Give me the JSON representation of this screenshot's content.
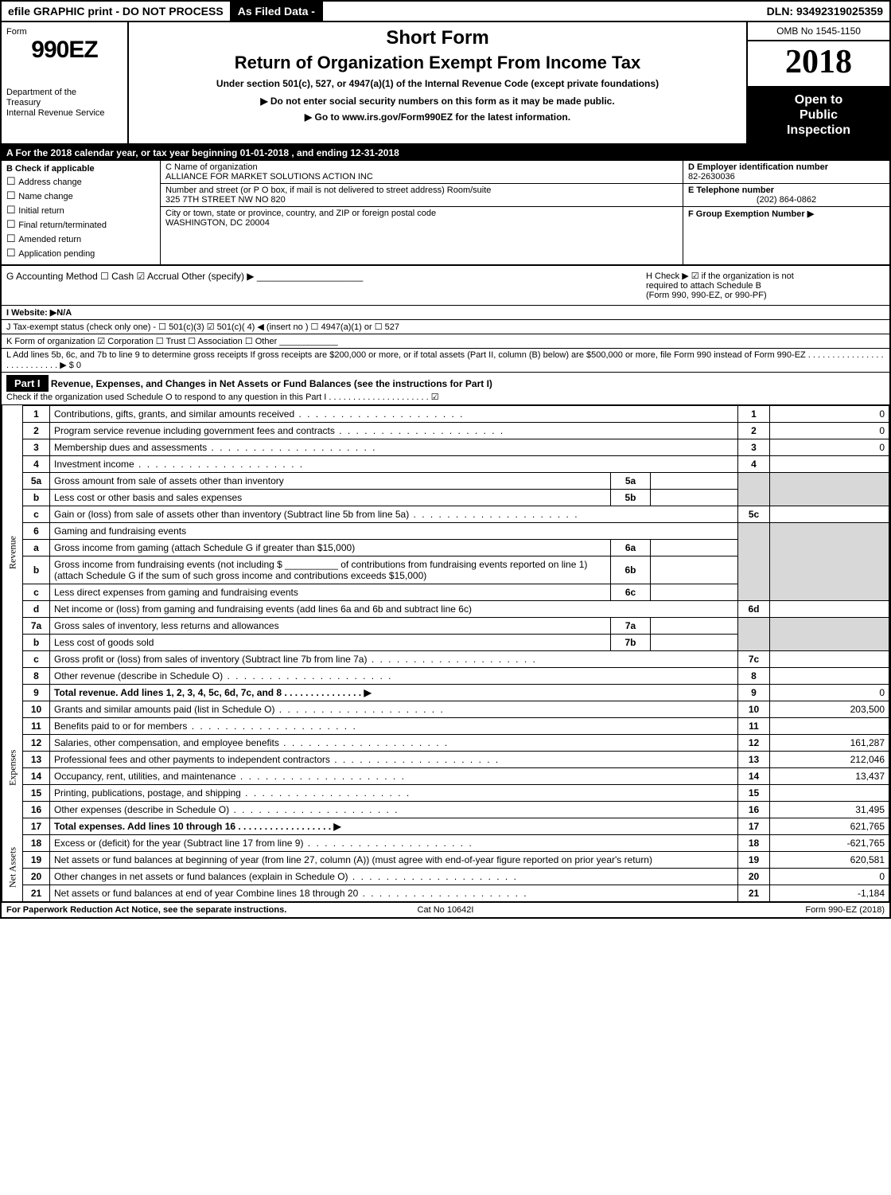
{
  "efile": {
    "left": "efile GRAPHIC print - DO NOT PROCESS",
    "as_filed": "As Filed Data -",
    "dln": "DLN: 93492319025359"
  },
  "header": {
    "form_prefix": "Form",
    "form_number": "990EZ",
    "short_form": "Short Form",
    "title": "Return of Organization Exempt From Income Tax",
    "subtitle": "Under section 501(c), 527, or 4947(a)(1) of the Internal Revenue Code (except private foundations)",
    "no_ssn": "▶ Do not enter social security numbers on this form as it may be made public.",
    "goto": "▶ Go to www.irs.gov/Form990EZ for the latest information.",
    "dept1": "Department of the",
    "dept2": "Treasury",
    "dept3": "Internal Revenue Service",
    "omb": "OMB No 1545-1150",
    "year": "2018",
    "open1": "Open to",
    "open2": "Public",
    "open3": "Inspection"
  },
  "lineA": "A  For the 2018 calendar year, or tax year beginning 01-01-2018           , and ending 12-31-2018",
  "B": {
    "header": "B  Check if applicable",
    "items": [
      "Address change",
      "Name change",
      "Initial return",
      "Final return/terminated",
      "Amended return",
      "Application pending"
    ]
  },
  "C": {
    "name_label": "C Name of organization",
    "name": "ALLIANCE FOR MARKET SOLUTIONS ACTION INC",
    "addr_label": "Number and street (or P O box, if mail is not delivered to street address) Room/suite",
    "addr": "325 7TH STREET NW NO 820",
    "city_label": "City or town, state or province, country, and ZIP or foreign postal code",
    "city": "WASHINGTON, DC 20004"
  },
  "D": {
    "ein_label": "D Employer identification number",
    "ein": "82-2630036",
    "tel_label": "E Telephone number",
    "tel": "(202) 864-0862",
    "grp_label": "F Group Exemption Number  ▶"
  },
  "G": {
    "text": "G Accounting Method    ☐ Cash   ☑ Accrual   Other (specify) ▶ ____________________"
  },
  "H": {
    "line1": "H   Check ▶  ☑ if the organization is not",
    "line2": "required to attach Schedule B",
    "line3": "(Form 990, 990-EZ, or 990-PF)"
  },
  "I": "I Website: ▶N/A",
  "J": "J Tax-exempt status (check only one) - ☐ 501(c)(3)  ☑ 501(c)( 4) ◀ (insert no )  ☐ 4947(a)(1) or  ☐ 527",
  "K": "K Form of organization    ☑ Corporation   ☐ Trust   ☐ Association   ☐ Other ____________",
  "L": "L Add lines 5b, 6c, and 7b to line 9 to determine gross receipts  If gross receipts are $200,000 or more, or if total assets (Part II, column (B) below) are $500,000 or more, file Form 990 instead of Form 990-EZ  . . . . . . . . . . . . . . . . . . . . . . . . . . . ▶ $ 0",
  "partI": {
    "label": "Part I",
    "title": "Revenue, Expenses, and Changes in Net Assets or Fund Balances (see the instructions for Part I)",
    "sub": "Check if the organization used Schedule O to respond to any question in this Part I . . . . . . . . . . . . . . . . . . . . . ☑"
  },
  "side": {
    "revenue": "Revenue",
    "expenses": "Expenses",
    "netassets": "Net Assets"
  },
  "rows": {
    "r1": {
      "n": "1",
      "d": "Contributions, gifts, grants, and similar amounts received",
      "rn": "1",
      "v": "0"
    },
    "r2": {
      "n": "2",
      "d": "Program service revenue including government fees and contracts",
      "rn": "2",
      "v": "0"
    },
    "r3": {
      "n": "3",
      "d": "Membership dues and assessments",
      "rn": "3",
      "v": "0"
    },
    "r4": {
      "n": "4",
      "d": "Investment income",
      "rn": "4",
      "v": ""
    },
    "r5a": {
      "n": "5a",
      "d": "Gross amount from sale of assets other than inventory",
      "sub": "5a"
    },
    "r5b": {
      "n": "b",
      "d": "Less cost or other basis and sales expenses",
      "sub": "5b"
    },
    "r5c": {
      "n": "c",
      "d": "Gain or (loss) from sale of assets other than inventory (Subtract line 5b from line 5a)",
      "rn": "5c",
      "v": ""
    },
    "r6": {
      "n": "6",
      "d": "Gaming and fundraising events"
    },
    "r6a": {
      "n": "a",
      "d": "Gross income from gaming (attach Schedule G if greater than $15,000)",
      "sub": "6a"
    },
    "r6b": {
      "n": "b",
      "d": "Gross income from fundraising events (not including $ __________ of contributions from fundraising events reported on line 1) (attach Schedule G if the sum of such gross income and contributions exceeds $15,000)",
      "sub": "6b"
    },
    "r6c": {
      "n": "c",
      "d": "Less direct expenses from gaming and fundraising events",
      "sub": "6c"
    },
    "r6d": {
      "n": "d",
      "d": "Net income or (loss) from gaming and fundraising events (add lines 6a and 6b and subtract line 6c)",
      "rn": "6d",
      "v": ""
    },
    "r7a": {
      "n": "7a",
      "d": "Gross sales of inventory, less returns and allowances",
      "sub": "7a"
    },
    "r7b": {
      "n": "b",
      "d": "Less cost of goods sold",
      "sub": "7b"
    },
    "r7c": {
      "n": "c",
      "d": "Gross profit or (loss) from sales of inventory (Subtract line 7b from line 7a)",
      "rn": "7c",
      "v": ""
    },
    "r8": {
      "n": "8",
      "d": "Other revenue (describe in Schedule O)",
      "rn": "8",
      "v": ""
    },
    "r9": {
      "n": "9",
      "d": "Total revenue. Add lines 1, 2, 3, 4, 5c, 6d, 7c, and 8   . . . . . . . . . . . . . . .  ▶",
      "rn": "9",
      "v": "0"
    },
    "r10": {
      "n": "10",
      "d": "Grants and similar amounts paid (list in Schedule O)",
      "rn": "10",
      "v": "203,500"
    },
    "r11": {
      "n": "11",
      "d": "Benefits paid to or for members",
      "rn": "11",
      "v": ""
    },
    "r12": {
      "n": "12",
      "d": "Salaries, other compensation, and employee benefits",
      "rn": "12",
      "v": "161,287"
    },
    "r13": {
      "n": "13",
      "d": "Professional fees and other payments to independent contractors",
      "rn": "13",
      "v": "212,046"
    },
    "r14": {
      "n": "14",
      "d": "Occupancy, rent, utilities, and maintenance",
      "rn": "14",
      "v": "13,437"
    },
    "r15": {
      "n": "15",
      "d": "Printing, publications, postage, and shipping",
      "rn": "15",
      "v": ""
    },
    "r16": {
      "n": "16",
      "d": "Other expenses (describe in Schedule O)",
      "rn": "16",
      "v": "31,495"
    },
    "r17": {
      "n": "17",
      "d": "Total expenses. Add lines 10 through 16   . . . . . . . . . . . . . . . . . .  ▶",
      "rn": "17",
      "v": "621,765"
    },
    "r18": {
      "n": "18",
      "d": "Excess or (deficit) for the year (Subtract line 17 from line 9)",
      "rn": "18",
      "v": "-621,765"
    },
    "r19": {
      "n": "19",
      "d": "Net assets or fund balances at beginning of year (from line 27, column (A)) (must agree with end-of-year figure reported on prior year's return)",
      "rn": "19",
      "v": "620,581"
    },
    "r20": {
      "n": "20",
      "d": "Other changes in net assets or fund balances (explain in Schedule O)",
      "rn": "20",
      "v": "0"
    },
    "r21": {
      "n": "21",
      "d": "Net assets or fund balances at end of year  Combine lines 18 through 20",
      "rn": "21",
      "v": "-1,184"
    }
  },
  "footer": {
    "left": "For Paperwork Reduction Act Notice, see the separate instructions.",
    "center": "Cat No 10642I",
    "right": "Form 990-EZ (2018)"
  }
}
